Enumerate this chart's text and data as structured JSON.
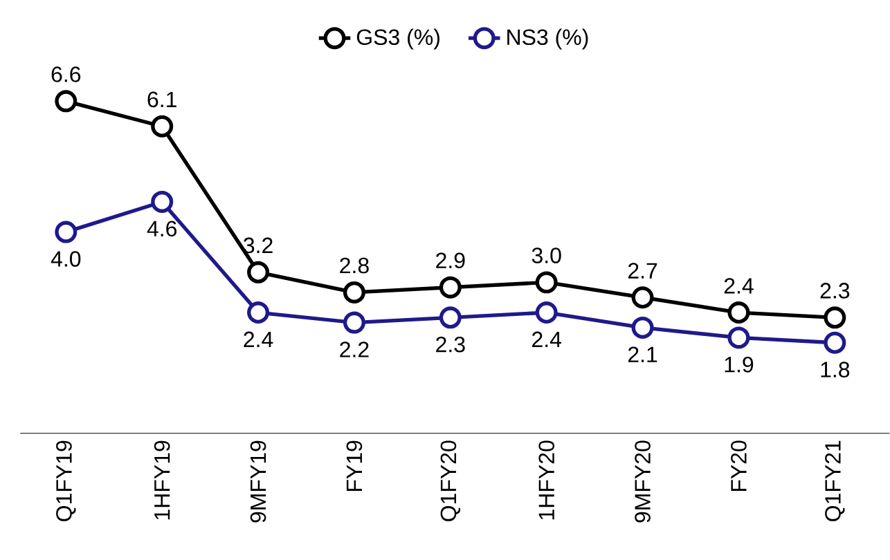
{
  "chart_data": {
    "type": "line",
    "categories": [
      "Q1FY19",
      "1HFY19",
      "9MFY19",
      "FY19",
      "Q1FY20",
      "1HFY20",
      "9MFY20",
      "FY20",
      "Q1FY21"
    ],
    "series": [
      {
        "name": "GS3 (%)",
        "color": "#000000",
        "values": [
          6.6,
          6.1,
          3.2,
          2.8,
          2.9,
          3.0,
          2.7,
          2.4,
          2.3
        ],
        "value_labels": [
          "6.6",
          "6.1",
          "3.2",
          "2.8",
          "2.9",
          "3.0",
          "2.7",
          "2.4",
          "2.3"
        ]
      },
      {
        "name": "NS3 (%)",
        "color": "#1f1a8a",
        "values": [
          4.0,
          4.6,
          2.4,
          2.2,
          2.3,
          2.4,
          2.1,
          1.9,
          1.8
        ],
        "value_labels": [
          "4.0",
          "4.6",
          "2.4",
          "2.2",
          "2.3",
          "2.4",
          "2.1",
          "1.9",
          "1.8"
        ]
      }
    ],
    "legend": "top",
    "marker": "circle",
    "line_style": "solid"
  }
}
